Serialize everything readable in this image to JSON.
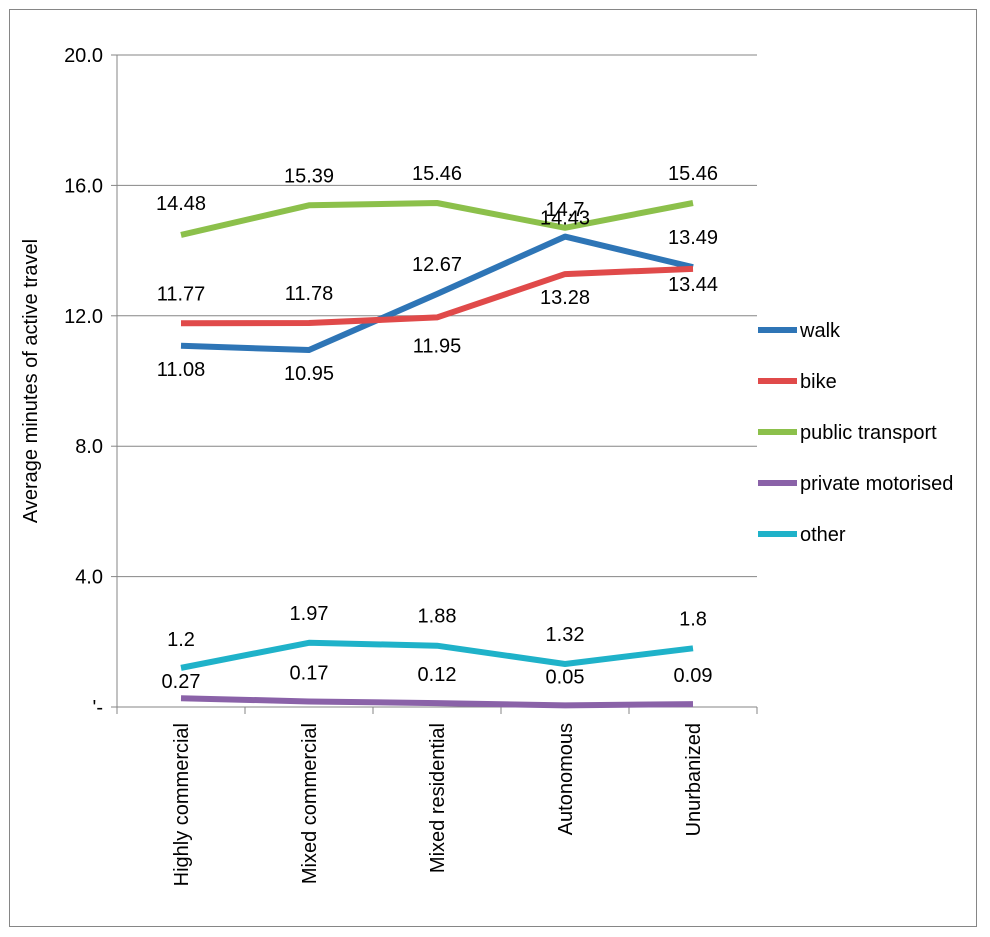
{
  "chart_data": {
    "type": "line",
    "title": "",
    "xlabel": "",
    "ylabel": "Average minutes of active travel",
    "categories": [
      "Highly commercial",
      "Mixed commercial",
      "Mixed residential",
      "Autonomous",
      "Unurbanized"
    ],
    "ylim": [
      0,
      20
    ],
    "yticks": [
      0,
      4,
      8,
      12,
      16,
      20
    ],
    "ytick_labels": [
      "'-",
      "4.0",
      "8.0",
      "12.0",
      "16.0",
      "20.0"
    ],
    "grid": true,
    "legend_position": "right",
    "series": [
      {
        "name": "walk",
        "color": "#2e75b6",
        "values": [
          11.08,
          10.95,
          12.67,
          14.43,
          13.49
        ],
        "labels": [
          "11.08",
          "10.95",
          "12.67",
          "14.43",
          "13.49"
        ]
      },
      {
        "name": "bike",
        "color": "#e04a4a",
        "values": [
          11.77,
          11.78,
          11.95,
          13.28,
          13.44
        ],
        "labels": [
          "11.77",
          "11.78",
          "11.95",
          "13.28",
          "13.44"
        ]
      },
      {
        "name": "public transport",
        "color": "#8cc04b",
        "values": [
          14.48,
          15.39,
          15.46,
          14.7,
          15.46
        ],
        "labels": [
          "14.48",
          "15.39",
          "15.46",
          "14.7",
          "15.46"
        ]
      },
      {
        "name": "private motorised",
        "color": "#8a62a8",
        "values": [
          0.27,
          0.17,
          0.12,
          0.05,
          0.09
        ],
        "labels": [
          "0.27",
          "0.17",
          "0.12",
          "0.05",
          "0.09"
        ]
      },
      {
        "name": "other",
        "color": "#1fb2c9",
        "values": [
          1.2,
          1.97,
          1.88,
          1.32,
          1.8
        ],
        "labels": [
          "1.2",
          "1.97",
          "1.88",
          "1.32",
          "1.8"
        ]
      }
    ]
  }
}
